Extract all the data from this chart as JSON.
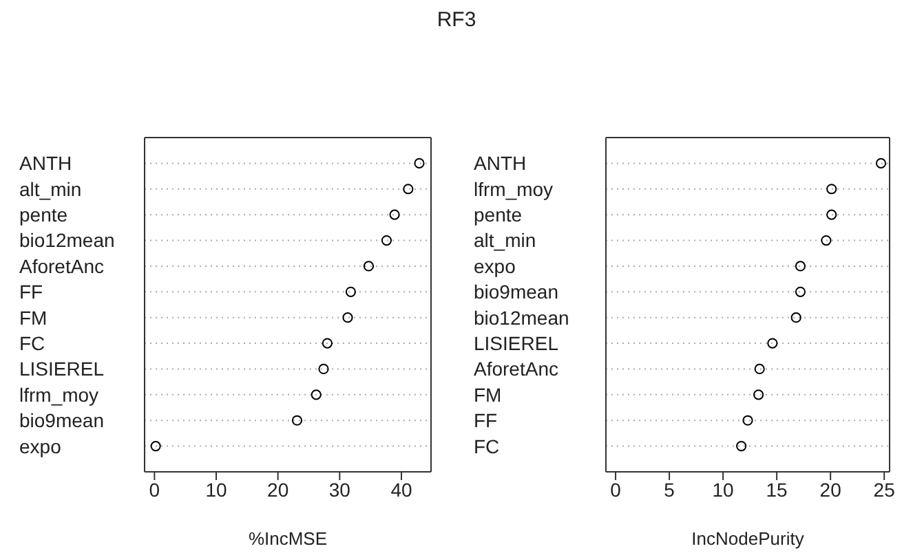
{
  "chart_data": [
    {
      "type": "scatter",
      "title": "RF3",
      "orientation": "horizontal",
      "categories": [
        "ANTH",
        "alt_min",
        "pente",
        "bio12mean",
        "AforetAnc",
        "FF",
        "FM",
        "FC",
        "LISIEREL",
        "lfrm_moy",
        "bio9mean",
        "expo"
      ],
      "series": [
        {
          "color": "#000000",
          "values": [
            42.9,
            41.1,
            38.9,
            37.6,
            34.7,
            31.8,
            31.3,
            28.0,
            27.4,
            26.2,
            23.1,
            0.2
          ]
        }
      ],
      "xlabel": "%IncMSE",
      "xlim": [
        -1.6,
        44.8
      ],
      "xticks": [
        0,
        10,
        20,
        30,
        40
      ],
      "grid": "y",
      "marker": "circle"
    },
    {
      "type": "scatter",
      "orientation": "horizontal",
      "categories": [
        "ANTH",
        "lfrm_moy",
        "pente",
        "alt_min",
        "expo",
        "bio9mean",
        "bio12mean",
        "LISIEREL",
        "AforetAnc",
        "FM",
        "FF",
        "FC"
      ],
      "series": [
        {
          "color": "#000000",
          "values": [
            24.7,
            20.1,
            20.1,
            19.6,
            17.2,
            17.2,
            16.8,
            14.6,
            13.4,
            13.3,
            12.3,
            11.7
          ]
        }
      ],
      "xlabel": "IncNodePurity",
      "xlim": [
        -0.9,
        25.5
      ],
      "xticks": [
        0,
        5,
        10,
        15,
        20,
        25
      ],
      "grid": "y",
      "marker": "circle"
    }
  ]
}
